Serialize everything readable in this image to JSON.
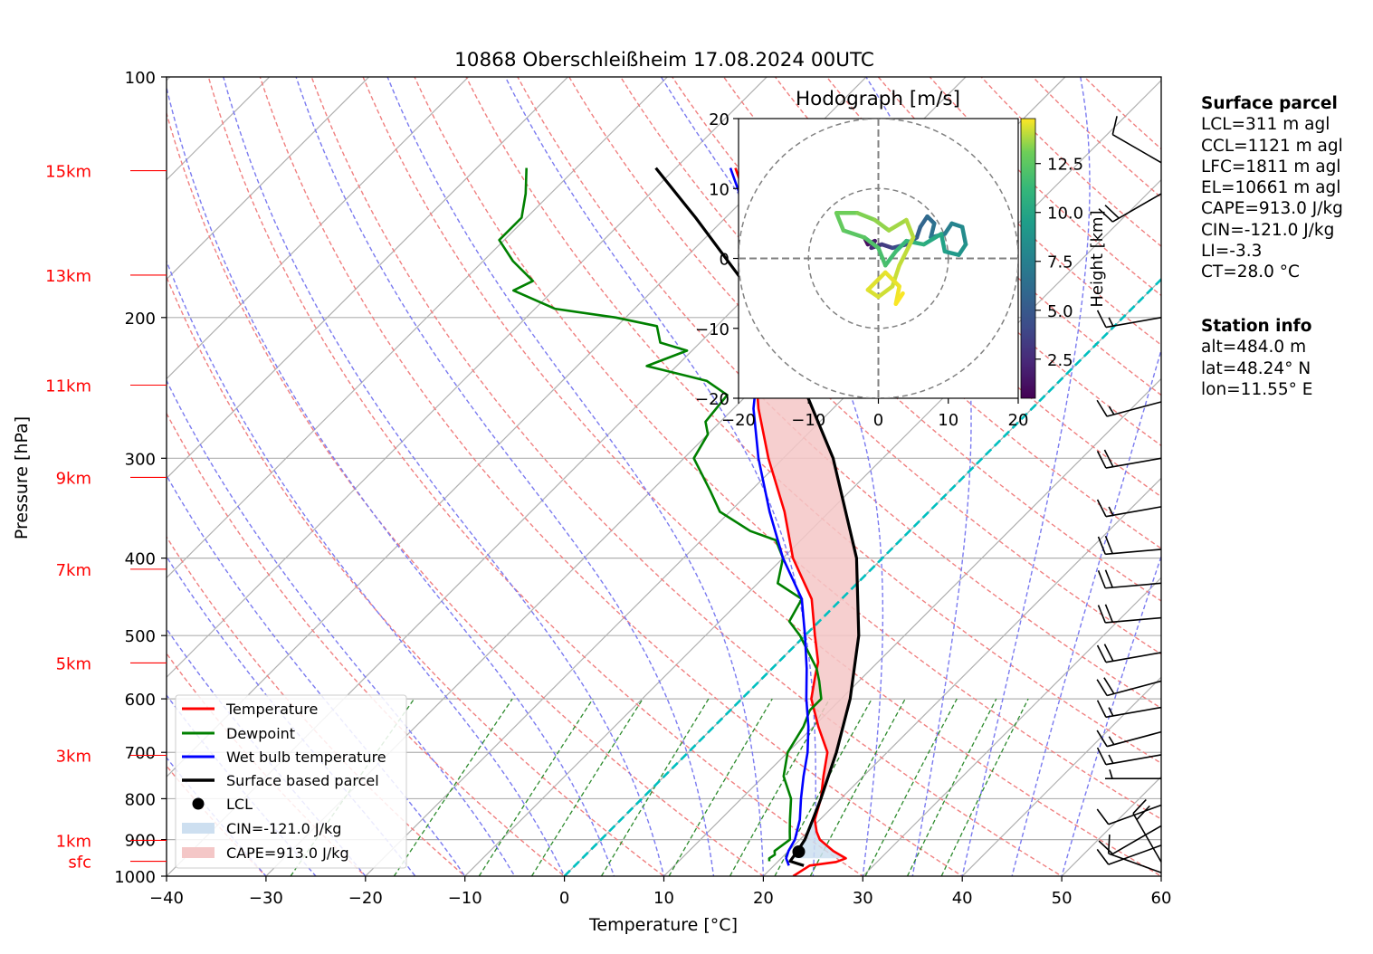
{
  "chart_data": {
    "type": "line",
    "title": "10868 Oberschleißheim 17.08.2024 00UTC",
    "xlabel": "Temperature [°C]",
    "ylabel": "Pressure [hPa]",
    "xlim": [
      -40,
      60
    ],
    "ylim": [
      1000,
      100
    ],
    "y_scale": "log",
    "skew": "skew-T",
    "x_ticks": [
      "−40",
      "−30",
      "−20",
      "−10",
      "0",
      "10",
      "20",
      "30",
      "40",
      "50",
      "60"
    ],
    "y_ticks": [
      "100",
      "200",
      "300",
      "400",
      "500",
      "600",
      "700",
      "800",
      "900",
      "1000"
    ],
    "height_labels": [
      {
        "label": "15km",
        "p": 131
      },
      {
        "label": "13km",
        "p": 177
      },
      {
        "label": "11km",
        "p": 243
      },
      {
        "label": "9km",
        "p": 317
      },
      {
        "label": "7km",
        "p": 413
      },
      {
        "label": "5km",
        "p": 541
      },
      {
        "label": "3km",
        "p": 706
      },
      {
        "label": "1km",
        "p": 902
      },
      {
        "label": "sfc",
        "p": 958
      }
    ],
    "series": [
      {
        "name": "Temperature",
        "color": "#ff0000",
        "p": [
          1000,
          970,
          960,
          950,
          945,
          930,
          900,
          880,
          850,
          800,
          750,
          700,
          650,
          600,
          560,
          540,
          500,
          450,
          400,
          350,
          300,
          260,
          240,
          220,
          200,
          190,
          180,
          170,
          160,
          150,
          140,
          130
        ],
        "t": [
          23.0,
          23.6,
          25.9,
          26.5,
          26.0,
          24.5,
          22.0,
          20.9,
          19.5,
          18.0,
          16.0,
          14.0,
          10.5,
          7.0,
          5.0,
          4.0,
          1.0,
          -3.0,
          -9.0,
          -14.5,
          -21.5,
          -27.5,
          -30.5,
          -34.0,
          -37.5,
          -38.0,
          -39.5,
          -42.0,
          -44.5,
          -48.0,
          -50.5,
          -54.0
        ]
      },
      {
        "name": "Dewpoint",
        "color": "#008000",
        "p": [
          958,
          950,
          940,
          930,
          900,
          880,
          850,
          800,
          750,
          700,
          650,
          620,
          600,
          570,
          550,
          500,
          480,
          450,
          430,
          400,
          380,
          370,
          350,
          330,
          300,
          280,
          270,
          250,
          240,
          230,
          220,
          215,
          205,
          200,
          195,
          185,
          180,
          170,
          160,
          150,
          140,
          130
        ],
        "t": [
          19.1,
          18.8,
          19.0,
          18.6,
          19.0,
          18.2,
          17.0,
          15.0,
          12.0,
          10.0,
          9.0,
          8.0,
          8.0,
          6.0,
          4.5,
          -0.5,
          -3.0,
          -4.0,
          -8.0,
          -10.0,
          -12.5,
          -16.0,
          -21.0,
          -24.0,
          -29.0,
          -30.0,
          -31.5,
          -32.0,
          -35.5,
          -43.0,
          -40.5,
          -44.0,
          -46.0,
          -51.0,
          -58.0,
          -64.0,
          -63.0,
          -67.0,
          -70.5,
          -70.5,
          -72.5,
          -75.0
        ]
      },
      {
        "name": "Wet bulb temperature",
        "color": "#0000ff",
        "p": [
          970,
          950,
          930,
          900,
          850,
          800,
          750,
          700,
          650,
          600,
          550,
          500,
          450,
          400,
          350,
          300,
          260,
          240,
          220,
          200,
          190,
          180,
          170,
          160,
          150,
          140,
          130
        ],
        "t": [
          21.5,
          20.5,
          20.0,
          19.5,
          18.0,
          16.0,
          14.0,
          12.0,
          9.5,
          6.5,
          3.5,
          0.0,
          -4.0,
          -10.0,
          -16.0,
          -22.5,
          -28.0,
          -30.5,
          -34.5,
          -38.0,
          -38.5,
          -40.0,
          -42.5,
          -45.0,
          -48.5,
          -51.0,
          -54.5
        ]
      },
      {
        "name": "Surface based parcel",
        "color": "#000000",
        "p": [
          970,
          958,
          930,
          900,
          850,
          800,
          700,
          600,
          500,
          400,
          300,
          250,
          200,
          150,
          130
        ],
        "t": [
          23.0,
          21.2,
          20.9,
          20.5,
          19.3,
          18.0,
          14.9,
          10.9,
          5.4,
          -2.6,
          -15.0,
          -24.0,
          -35.5,
          -53.0,
          -62.0
        ]
      }
    ],
    "lcl": {
      "label": "LCL",
      "p": 932,
      "t": 21.1
    },
    "cin_label": "CIN=-121.0 J/kg",
    "cape_label": "CAPE=913.0 J/kg",
    "legend": [
      "Temperature",
      "Dewpoint",
      "Wet bulb temperature",
      "Surface based parcel",
      "LCL",
      "CIN=-121.0 J/kg",
      "CAPE=913.0 J/kg"
    ],
    "legend_position": "lower-left",
    "grid": true,
    "colors": {
      "temperature": "#ff0000",
      "dewpoint": "#008000",
      "wetbulb": "#0000ff",
      "parcel": "#000000",
      "freezing_line": "#00bfbf",
      "cape_fill": "#f4c7c7",
      "cin_fill": "#cddff0",
      "dry_adiabats": "#f08080",
      "moist_adiabats": "#7b7bf0",
      "mixing_ratio": "#2e8b2e"
    },
    "wind_barbs": [
      {
        "p": 990,
        "speed_kt": 10,
        "dir_deg": 290
      },
      {
        "p": 960,
        "speed_kt": 20,
        "dir_deg": 330
      },
      {
        "p": 915,
        "speed_kt": 10,
        "dir_deg": 250
      },
      {
        "p": 865,
        "speed_kt": 10,
        "dir_deg": 240
      },
      {
        "p": 815,
        "speed_kt": 10,
        "dir_deg": 250
      },
      {
        "p": 755,
        "speed_kt": 5,
        "dir_deg": 270
      },
      {
        "p": 705,
        "speed_kt": 15,
        "dir_deg": 260
      },
      {
        "p": 660,
        "speed_kt": 15,
        "dir_deg": 255
      },
      {
        "p": 615,
        "speed_kt": 15,
        "dir_deg": 260
      },
      {
        "p": 570,
        "speed_kt": 20,
        "dir_deg": 255
      },
      {
        "p": 525,
        "speed_kt": 20,
        "dir_deg": 260
      },
      {
        "p": 475,
        "speed_kt": 20,
        "dir_deg": 265
      },
      {
        "p": 430,
        "speed_kt": 20,
        "dir_deg": 265
      },
      {
        "p": 390,
        "speed_kt": 20,
        "dir_deg": 265
      },
      {
        "p": 345,
        "speed_kt": 15,
        "dir_deg": 260
      },
      {
        "p": 300,
        "speed_kt": 20,
        "dir_deg": 260
      },
      {
        "p": 255,
        "speed_kt": 15,
        "dir_deg": 255
      },
      {
        "p": 200,
        "speed_kt": 15,
        "dir_deg": 260
      },
      {
        "p": 140,
        "speed_kt": 20,
        "dir_deg": 240
      },
      {
        "p": 128,
        "speed_kt": 10,
        "dir_deg": 300
      }
    ]
  },
  "hodograph": {
    "title": "Hodograph [m/s]",
    "xlim": [
      -20,
      20
    ],
    "ylim": [
      -20,
      20
    ],
    "x_ticks": [
      "−20",
      "−10",
      "0",
      "10",
      "20"
    ],
    "y_ticks": [
      "20",
      "10",
      "0",
      "−10",
      "−20"
    ],
    "rings": [
      10,
      20
    ],
    "colorbar_label": "Height [km]",
    "colorbar_ticks": [
      "2.5",
      "5.0",
      "7.5",
      "10.0",
      "12.5"
    ],
    "colorbar_range": [
      0.5,
      14.8
    ],
    "trace": [
      {
        "u": -2.0,
        "v": 3.0,
        "h": 0.5
      },
      {
        "u": -1.5,
        "v": 2.0,
        "h": 1.0
      },
      {
        "u": -0.5,
        "v": 2.5,
        "h": 1.5
      },
      {
        "u": -1.0,
        "v": 1.5,
        "h": 2.0
      },
      {
        "u": 0.5,
        "v": 2.0,
        "h": 3.0
      },
      {
        "u": 2.0,
        "v": 1.5,
        "h": 3.8
      },
      {
        "u": 4.0,
        "v": 2.0,
        "h": 4.5
      },
      {
        "u": 5.5,
        "v": 3.0,
        "h": 5.2
      },
      {
        "u": 6.0,
        "v": 4.5,
        "h": 5.6
      },
      {
        "u": 7.0,
        "v": 6.0,
        "h": 6.0
      },
      {
        "u": 8.0,
        "v": 5.0,
        "h": 6.4
      },
      {
        "u": 7.5,
        "v": 3.0,
        "h": 6.8
      },
      {
        "u": 9.5,
        "v": 3.5,
        "h": 7.2
      },
      {
        "u": 10.5,
        "v": 5.0,
        "h": 7.6
      },
      {
        "u": 12.0,
        "v": 4.5,
        "h": 8.0
      },
      {
        "u": 12.5,
        "v": 2.0,
        "h": 8.5
      },
      {
        "u": 11.5,
        "v": 0.5,
        "h": 9.0
      },
      {
        "u": 9.5,
        "v": 1.0,
        "h": 9.5
      },
      {
        "u": 9.0,
        "v": 3.5,
        "h": 10.0
      },
      {
        "u": 6.5,
        "v": 2.0,
        "h": 10.5
      },
      {
        "u": 4.0,
        "v": 2.5,
        "h": 11.0
      },
      {
        "u": 2.5,
        "v": 1.0,
        "h": 11.5
      },
      {
        "u": 1.0,
        "v": -1.0,
        "h": 11.8
      },
      {
        "u": 0.0,
        "v": 1.5,
        "h": 12.0
      },
      {
        "u": -2.0,
        "v": 3.0,
        "h": 12.3
      },
      {
        "u": -5.0,
        "v": 4.0,
        "h": 12.6
      },
      {
        "u": -6.0,
        "v": 6.5,
        "h": 12.9
      },
      {
        "u": -3.0,
        "v": 6.5,
        "h": 13.2
      },
      {
        "u": -0.5,
        "v": 5.5,
        "h": 13.4
      },
      {
        "u": 1.5,
        "v": 4.0,
        "h": 13.6
      },
      {
        "u": 4.0,
        "v": 5.5,
        "h": 13.8
      },
      {
        "u": 5.0,
        "v": 3.0,
        "h": 14.0
      },
      {
        "u": 3.0,
        "v": -1.0,
        "h": 14.1
      },
      {
        "u": 2.0,
        "v": -4.0,
        "h": 14.2
      },
      {
        "u": 0.0,
        "v": -5.5,
        "h": 14.3
      },
      {
        "u": -1.5,
        "v": -4.5,
        "h": 14.4
      },
      {
        "u": 1.0,
        "v": -2.0,
        "h": 14.5
      },
      {
        "u": 3.0,
        "v": -4.0,
        "h": 14.6
      },
      {
        "u": 2.5,
        "v": -6.5,
        "h": 14.7
      },
      {
        "u": 3.5,
        "v": -5.0,
        "h": 14.8
      }
    ]
  },
  "surface_parcel": {
    "heading": "Surface parcel",
    "lines": [
      "LCL=311 m agl",
      "CCL=1121 m agl",
      "LFC=1811 m agl",
      "EL=10661 m agl",
      "CAPE=913.0 J/kg",
      "CIN=-121.0 J/kg",
      "LI=-3.3",
      "CT=28.0 °C"
    ]
  },
  "station_info": {
    "heading": "Station info",
    "lines": [
      "alt=484.0 m",
      "lat=48.24° N",
      "lon=11.55° E"
    ]
  }
}
